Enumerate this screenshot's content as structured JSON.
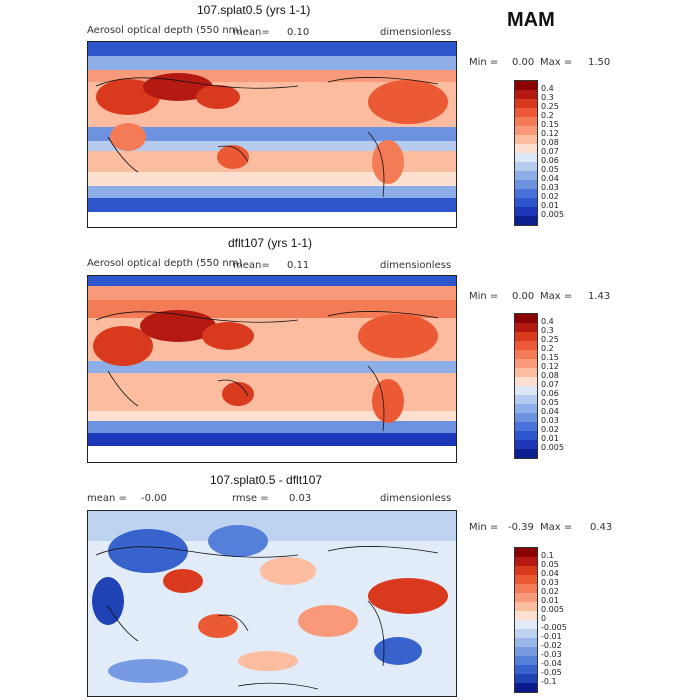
{
  "season": "MAM",
  "colors": {
    "aod_scale": [
      "#8b0000",
      "#b41a12",
      "#d93a1e",
      "#ec5a35",
      "#f37b55",
      "#f89a7a",
      "#fbbca0",
      "#fde0cf",
      "#dce8f6",
      "#b6ccee",
      "#8daee6",
      "#6d92e0",
      "#4a73d9",
      "#2d55cc",
      "#1c38b8",
      "#0b1f8f"
    ],
    "diff_scale": [
      "#8b0000",
      "#b41a12",
      "#d93a1e",
      "#ec5a35",
      "#f37b55",
      "#f89a7a",
      "#fbbca0",
      "#fde0cf",
      "#e2ecf8",
      "#bed3f0",
      "#98b6e8",
      "#769be2",
      "#5580da",
      "#3862cc",
      "#1f42b4",
      "#0a1a8a"
    ]
  },
  "panels": [
    {
      "title": "107.splat0.5 (yrs 1-1)",
      "label": "Aerosol optical depth (550 nm)",
      "mean_label": "mean=",
      "mean_value": "0.10",
      "units": "dimensionless",
      "min_label": "Min =",
      "min_value": "0.00",
      "max_label": "Max =",
      "max_value": "1.50",
      "legend": [
        "0.4",
        "0.3",
        "0.25",
        "0.2",
        "0.15",
        "0.12",
        "0.08",
        "0.07",
        "0.06",
        "0.05",
        "0.04",
        "0.03",
        "0.02",
        "0.01",
        "0.005"
      ]
    },
    {
      "title": "dflt107 (yrs 1-1)",
      "label": "Aerosol optical depth (550 nm)",
      "mean_label": "mean=",
      "mean_value": "0.11",
      "units": "dimensionless",
      "min_label": "Min =",
      "min_value": "0.00",
      "max_label": "Max =",
      "max_value": "1.43",
      "legend": [
        "0.4",
        "0.3",
        "0.25",
        "0.2",
        "0.15",
        "0.12",
        "0.08",
        "0.07",
        "0.06",
        "0.05",
        "0.04",
        "0.03",
        "0.02",
        "0.01",
        "0.005"
      ]
    },
    {
      "title": "107.splat0.5 - dflt107",
      "mean_label": "mean =",
      "mean_value": "-0.00",
      "rmse_label": "rmse =",
      "rmse_value": "0.03",
      "units": "dimensionless",
      "min_label": "Min =",
      "min_value": "-0.39",
      "max_label": "Max =",
      "max_value": "0.43",
      "legend": [
        "0.1",
        "0.05",
        "0.04",
        "0.03",
        "0.02",
        "0.01",
        "0.005",
        "0",
        "-0.005",
        "-0.01",
        "-0.02",
        "-0.03",
        "-0.04",
        "-0.05",
        "-0.1"
      ]
    }
  ],
  "chart_data": [
    {
      "type": "heatmap",
      "title": "107.splat0.5 (yrs 1-1)",
      "variable": "Aerosol optical depth (550 nm)",
      "units": "dimensionless",
      "mean": 0.1,
      "min": 0.0,
      "max": 1.5,
      "contour_levels": [
        0.005,
        0.01,
        0.02,
        0.03,
        0.04,
        0.05,
        0.06,
        0.07,
        0.08,
        0.12,
        0.15,
        0.2,
        0.25,
        0.3,
        0.4
      ]
    },
    {
      "type": "heatmap",
      "title": "dflt107 (yrs 1-1)",
      "variable": "Aerosol optical depth (550 nm)",
      "units": "dimensionless",
      "mean": 0.11,
      "min": 0.0,
      "max": 1.43,
      "contour_levels": [
        0.005,
        0.01,
        0.02,
        0.03,
        0.04,
        0.05,
        0.06,
        0.07,
        0.08,
        0.12,
        0.15,
        0.2,
        0.25,
        0.3,
        0.4
      ]
    },
    {
      "type": "heatmap",
      "title": "107.splat0.5 - dflt107",
      "units": "dimensionless",
      "mean": -0.0,
      "rmse": 0.03,
      "min": -0.39,
      "max": 0.43,
      "contour_levels": [
        -0.1,
        -0.05,
        -0.04,
        -0.03,
        -0.02,
        -0.01,
        -0.005,
        0,
        0.005,
        0.01,
        0.02,
        0.03,
        0.04,
        0.05,
        0.1
      ]
    }
  ]
}
